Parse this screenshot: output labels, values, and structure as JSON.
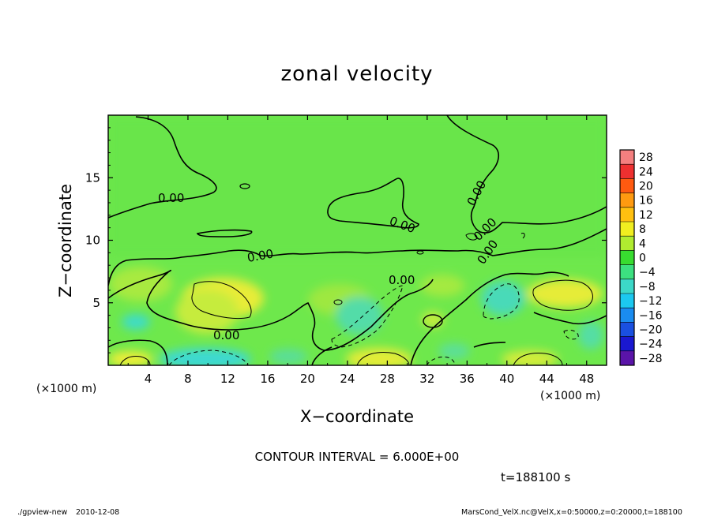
{
  "chart_data": {
    "type": "heatmap",
    "title": "zonal velocity",
    "xlabel": "X−coordinate",
    "ylabel": "Z−coordinate",
    "x_multiplier": "(×1000 m)",
    "z_multiplier": "(×1000 m)",
    "xlim": [
      0,
      50
    ],
    "ylim": [
      0,
      20
    ],
    "x_ticks": [
      4,
      8,
      12,
      16,
      20,
      24,
      28,
      32,
      36,
      40,
      44,
      48
    ],
    "y_ticks": [
      5,
      10,
      15
    ],
    "colorbar_levels": [
      28,
      24,
      20,
      16,
      12,
      8,
      4,
      0,
      -4,
      -8,
      -12,
      -16,
      -20,
      -24,
      -28
    ],
    "colorbar_labels": [
      "28",
      "24",
      "20",
      "16",
      "12",
      "8",
      "4",
      "0",
      "−4",
      "−8",
      "−12",
      "−16",
      "−20",
      "−24",
      "−28"
    ],
    "contour_labels": [
      "0.00",
      "0.00",
      "0.00",
      "0.00",
      "0.00",
      "0.00",
      "0.00",
      "0.00"
    ],
    "colors": {
      "background_field": "#6ee84c",
      "positive_high": "#f2ee3c",
      "negative": "#3ddcc8",
      "contour": "#000000"
    }
  },
  "footer": {
    "contour_interval": "CONTOUR INTERVAL = 6.000E+00",
    "time": "t=188100 s",
    "program": "./gpview-new",
    "date": "2010-12-08",
    "source": "MarsCond_VelX.nc@VelX,x=0:50000,z=0:20000,t=188100"
  }
}
